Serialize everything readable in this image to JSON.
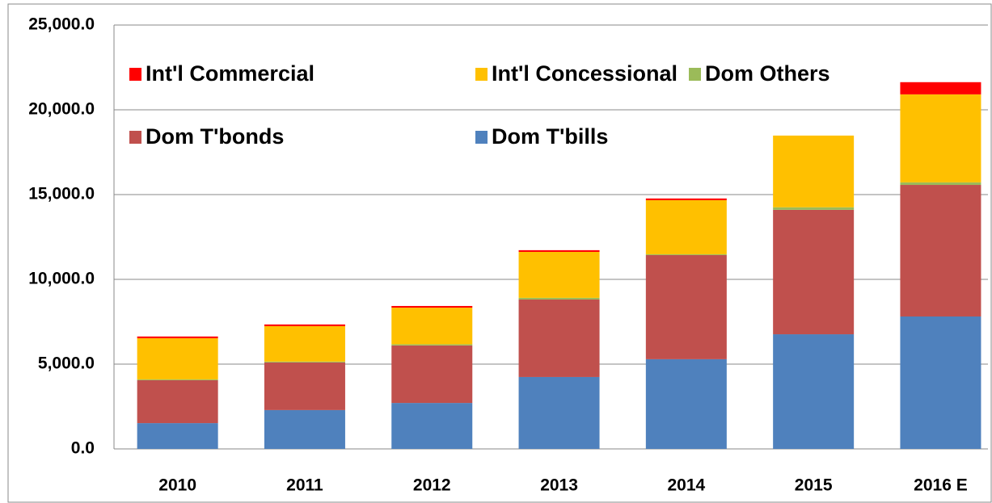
{
  "chart_data": {
    "type": "stacked_bar",
    "categories": [
      "2010",
      "2011",
      "2012",
      "2013",
      "2014",
      "2015",
      "2016 E"
    ],
    "series": [
      {
        "name": "Int'l Commercial",
        "color": "#ff0000",
        "values": [
          100,
          100,
          100,
          100,
          100,
          0,
          720
        ]
      },
      {
        "name": "Int'l Concessional",
        "color": "#ffc000",
        "values": [
          2430,
          2090,
          2160,
          2710,
          3190,
          4230,
          5190
        ]
      },
      {
        "name": "Dom Others",
        "color": "#9bbb59",
        "values": [
          50,
          50,
          70,
          100,
          50,
          150,
          150
        ]
      },
      {
        "name": "Dom T'bonds",
        "color": "#c0504d",
        "values": [
          2530,
          2810,
          3390,
          4570,
          6140,
          7340,
          7760
        ]
      },
      {
        "name": "Dom T'bills",
        "color": "#4f81bd",
        "values": [
          1520,
          2290,
          2710,
          4240,
          5290,
          6760,
          7810
        ]
      }
    ],
    "ylim": [
      0,
      25000
    ],
    "yticks": [
      {
        "value": 0,
        "label": "0.0"
      },
      {
        "value": 5000,
        "label": "5,000.0"
      },
      {
        "value": 10000,
        "label": "10,000.0"
      },
      {
        "value": 15000,
        "label": "15,000.0"
      },
      {
        "value": 20000,
        "label": "20,000.0"
      },
      {
        "value": 25000,
        "label": "25,000.0"
      }
    ],
    "grid": true
  }
}
